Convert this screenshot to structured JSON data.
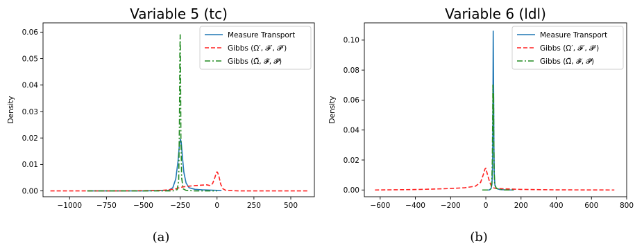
{
  "chart_data": [
    {
      "type": "line",
      "title": "Variable 5 (tc)",
      "caption": "(a)",
      "xlabel": "",
      "ylabel": "Density",
      "xlim": [
        -1180,
        660
      ],
      "ylim": [
        -0.0022,
        0.0635
      ],
      "xticks": [
        -1000,
        -750,
        -500,
        -250,
        0,
        250,
        500
      ],
      "xtick_labels": [
        "−1000",
        "−750",
        "−500",
        "−250",
        "0",
        "250",
        "500"
      ],
      "yticks": [
        0.0,
        0.01,
        0.02,
        0.03,
        0.04,
        0.05,
        0.06
      ],
      "ytick_labels": [
        "0.00",
        "0.01",
        "0.02",
        "0.03",
        "0.04",
        "0.05",
        "0.06"
      ],
      "legend_position": "top-right",
      "series": [
        {
          "name": "Measure Transport",
          "color": "#1f77b4",
          "style": "solid",
          "x": [
            -880,
            -500,
            -330,
            -300,
            -280,
            -265,
            -255,
            -248,
            -243,
            -235,
            -225,
            -210,
            -190,
            -150,
            -100,
            -50,
            0,
            30
          ],
          "y": [
            0.0,
            0.0,
            0.0002,
            0.0012,
            0.0045,
            0.011,
            0.0175,
            0.0195,
            0.0185,
            0.013,
            0.007,
            0.003,
            0.0012,
            0.0006,
            0.0004,
            0.0003,
            0.0002,
            0.0001
          ]
        },
        {
          "name": "Gibbs (Ω′, 𝓕′, 𝓟′)",
          "color": "#ff2020",
          "style": "dashed",
          "x": [
            -1130,
            -700,
            -500,
            -380,
            -330,
            -300,
            -280,
            -270,
            -255,
            -240,
            -220,
            -190,
            -150,
            -100,
            -70,
            -45,
            -30,
            -15,
            -5,
            0,
            5,
            15,
            25,
            40,
            60,
            150,
            400,
            620
          ],
          "y": [
            0.0,
            0.0,
            0.0001,
            0.0002,
            0.0004,
            0.0006,
            0.0008,
            0.001,
            0.0012,
            0.0014,
            0.0016,
            0.0018,
            0.002,
            0.0022,
            0.0023,
            0.002,
            0.0028,
            0.005,
            0.0068,
            0.0072,
            0.0068,
            0.005,
            0.0025,
            0.0008,
            0.0002,
            0.0,
            0.0,
            0.0
          ]
        },
        {
          "name": "Gibbs  (Ω̃, 𝓕̃, 𝓟̃)",
          "color": "#228b22",
          "style": "dashdot",
          "x": [
            -880,
            -400,
            -300,
            -270,
            -260,
            -255,
            -252,
            -250,
            -248,
            -245,
            -240,
            -230,
            -210,
            -150,
            0
          ],
          "y": [
            0.0,
            0.0,
            0.0,
            0.0005,
            0.004,
            0.025,
            0.052,
            0.059,
            0.05,
            0.02,
            0.005,
            0.0008,
            0.0002,
            0.0,
            0.0
          ]
        }
      ]
    },
    {
      "type": "line",
      "title": "Variable 6 (ldl)",
      "caption": "(b)",
      "xlabel": "",
      "ylabel": "Density",
      "xlim": [
        -690,
        800
      ],
      "ylim": [
        -0.0045,
        0.1115
      ],
      "xticks": [
        -600,
        -400,
        -200,
        0,
        200,
        400,
        600,
        800
      ],
      "xtick_labels": [
        "−600",
        "−400",
        "−200",
        "0",
        "200",
        "400",
        "600",
        "800"
      ],
      "yticks": [
        0.0,
        0.02,
        0.04,
        0.06,
        0.08,
        0.1
      ],
      "ytick_labels": [
        "0.00",
        "0.02",
        "0.04",
        "0.06",
        "0.08",
        "0.10"
      ],
      "legend_position": "top-right",
      "series": [
        {
          "name": "Measure Transport",
          "color": "#1f77b4",
          "style": "solid",
          "x": [
            -20,
            20,
            30,
            35,
            38,
            40,
            42,
            44,
            46,
            48,
            52,
            60,
            80,
            120,
            160
          ],
          "y": [
            0.0,
            0.0,
            0.001,
            0.004,
            0.015,
            0.045,
            0.106,
            0.07,
            0.03,
            0.01,
            0.003,
            0.001,
            0.0003,
            0.0,
            0.0
          ]
        },
        {
          "name": "Gibbs (Ω′, 𝓕′, 𝓟′)",
          "color": "#ff2020",
          "style": "dashed",
          "x": [
            -630,
            -400,
            -300,
            -200,
            -120,
            -60,
            -30,
            -15,
            -5,
            0,
            10,
            20,
            30,
            40,
            60,
            100,
            200,
            400,
            730
          ],
          "y": [
            0.0,
            0.0003,
            0.0006,
            0.001,
            0.0015,
            0.0025,
            0.005,
            0.01,
            0.014,
            0.0145,
            0.01,
            0.006,
            0.003,
            0.0015,
            0.001,
            0.0008,
            0.0004,
            0.0001,
            0.0
          ]
        },
        {
          "name": "Gibbs  (Ω̃, 𝓕̃, 𝓟̃)",
          "color": "#228b22",
          "style": "dashdot",
          "x": [
            -20,
            20,
            30,
            34,
            37,
            39,
            40,
            41,
            42,
            43,
            44,
            45,
            47,
            50,
            60,
            100,
            160
          ],
          "y": [
            0.0,
            0.0,
            0.001,
            0.005,
            0.02,
            0.05,
            0.07,
            0.06,
            0.04,
            0.06,
            0.065,
            0.04,
            0.015,
            0.004,
            0.001,
            0.0,
            0.0
          ]
        }
      ]
    }
  ]
}
